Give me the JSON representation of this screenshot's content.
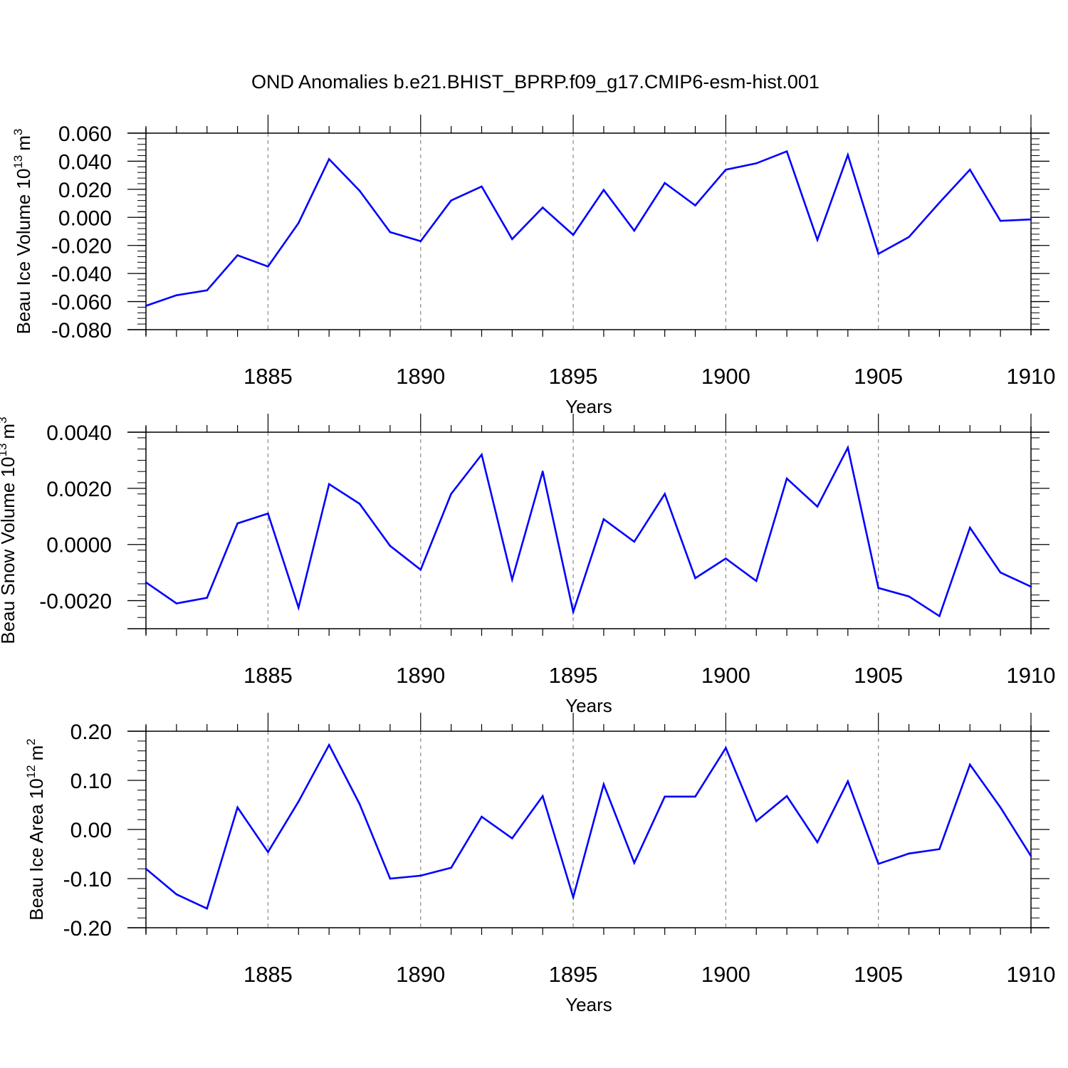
{
  "figure": {
    "title": "OND Anomalies b.e21.BHIST_BPRP.f09_g17.CMIP6-esm-hist.001"
  },
  "colors": {
    "line": "#0000ff",
    "axis": "#000000",
    "grid": "#888888"
  },
  "chart_data": [
    {
      "type": "line",
      "ylabel_main": "Beau Ice Volume 10",
      "ylabel_exp": "13",
      "ylabel_unit": "m",
      "ylabel_unit_exp": "3",
      "xlabel": "Years",
      "xlim": [
        1881,
        1910
      ],
      "ylim": [
        -0.08,
        0.06
      ],
      "yticks": [
        -0.08,
        -0.06,
        -0.04,
        -0.02,
        0.0,
        0.02,
        0.04,
        0.06
      ],
      "ytick_labels": [
        "-0.080",
        "-0.060",
        "-0.040",
        "-0.020",
        "0.000",
        "0.020",
        "0.040",
        "0.060"
      ],
      "xticks": [
        1885,
        1890,
        1895,
        1900,
        1905,
        1910
      ],
      "xtick_labels": [
        "1885",
        "1890",
        "1895",
        "1900",
        "1905",
        "1910"
      ],
      "x": [
        1881,
        1882,
        1883,
        1884,
        1885,
        1886,
        1887,
        1888,
        1889,
        1890,
        1891,
        1892,
        1893,
        1894,
        1895,
        1896,
        1897,
        1898,
        1899,
        1900,
        1901,
        1902,
        1903,
        1904,
        1905,
        1906,
        1907,
        1908,
        1909,
        1910
      ],
      "series": [
        {
          "name": "Beau Ice Volume",
          "values": [
            -0.063,
            -0.0555,
            -0.052,
            -0.027,
            -0.035,
            -0.004,
            0.0415,
            0.019,
            -0.0105,
            -0.017,
            0.012,
            0.022,
            -0.0155,
            0.007,
            -0.0125,
            0.0195,
            -0.0095,
            0.0245,
            0.0085,
            0.034,
            0.0385,
            0.047,
            -0.016,
            0.0445,
            -0.026,
            -0.014,
            0.0105,
            0.034,
            -0.0025,
            -0.0015
          ]
        }
      ]
    },
    {
      "type": "line",
      "ylabel_main": "Beau Snow Volume 10",
      "ylabel_exp": "13",
      "ylabel_unit": "m",
      "ylabel_unit_exp": "3",
      "xlabel": "Years",
      "xlim": [
        1881,
        1910
      ],
      "ylim": [
        -0.003,
        0.004
      ],
      "yticks": [
        -0.002,
        0.0,
        0.002,
        0.004
      ],
      "ytick_labels": [
        "-0.0020",
        "0.0000",
        "0.0020",
        "0.0040"
      ],
      "xticks": [
        1885,
        1890,
        1895,
        1900,
        1905,
        1910
      ],
      "xtick_labels": [
        "1885",
        "1890",
        "1895",
        "1900",
        "1905",
        "1910"
      ],
      "x": [
        1881,
        1882,
        1883,
        1884,
        1885,
        1886,
        1887,
        1888,
        1889,
        1890,
        1891,
        1892,
        1893,
        1894,
        1895,
        1896,
        1897,
        1898,
        1899,
        1900,
        1901,
        1902,
        1903,
        1904,
        1905,
        1906,
        1907,
        1908,
        1909,
        1910
      ],
      "series": [
        {
          "name": "Beau Snow Volume",
          "values": [
            -0.00135,
            -0.0021,
            -0.0019,
            0.00075,
            0.0011,
            -0.00225,
            0.00215,
            0.00145,
            -5e-05,
            -0.0009,
            0.0018,
            0.0032,
            -0.00125,
            0.0026,
            -0.0024,
            0.0009,
            0.0001,
            0.0018,
            -0.0012,
            -0.0005,
            -0.0013,
            0.00235,
            0.00135,
            0.00345,
            -0.00155,
            -0.00185,
            -0.00255,
            0.0006,
            -0.001,
            -0.0015
          ]
        }
      ]
    },
    {
      "type": "line",
      "ylabel_main": "Beau Ice Area 10",
      "ylabel_exp": "12",
      "ylabel_unit": "m",
      "ylabel_unit_exp": "2",
      "xlabel": "Years",
      "xlim": [
        1881,
        1910
      ],
      "ylim": [
        -0.2,
        0.2
      ],
      "yticks": [
        -0.2,
        -0.1,
        0.0,
        0.1,
        0.2
      ],
      "ytick_labels": [
        "-0.20",
        "-0.10",
        "0.00",
        "0.10",
        "0.20"
      ],
      "xticks": [
        1885,
        1890,
        1895,
        1900,
        1905,
        1910
      ],
      "xtick_labels": [
        "1885",
        "1890",
        "1895",
        "1900",
        "1905",
        "1910"
      ],
      "x": [
        1881,
        1882,
        1883,
        1884,
        1885,
        1886,
        1887,
        1888,
        1889,
        1890,
        1891,
        1892,
        1893,
        1894,
        1895,
        1896,
        1897,
        1898,
        1899,
        1900,
        1901,
        1902,
        1903,
        1904,
        1905,
        1906,
        1907,
        1908,
        1909,
        1910
      ],
      "series": [
        {
          "name": "Beau Ice Area",
          "values": [
            -0.08,
            -0.132,
            -0.161,
            0.045,
            -0.046,
            0.057,
            0.172,
            0.052,
            -0.1,
            -0.094,
            -0.078,
            0.026,
            -0.018,
            0.068,
            -0.138,
            0.092,
            -0.068,
            0.067,
            0.067,
            0.166,
            0.017,
            0.068,
            -0.026,
            0.098,
            -0.07,
            -0.049,
            -0.04,
            0.132,
            0.045,
            -0.054
          ]
        }
      ]
    }
  ]
}
